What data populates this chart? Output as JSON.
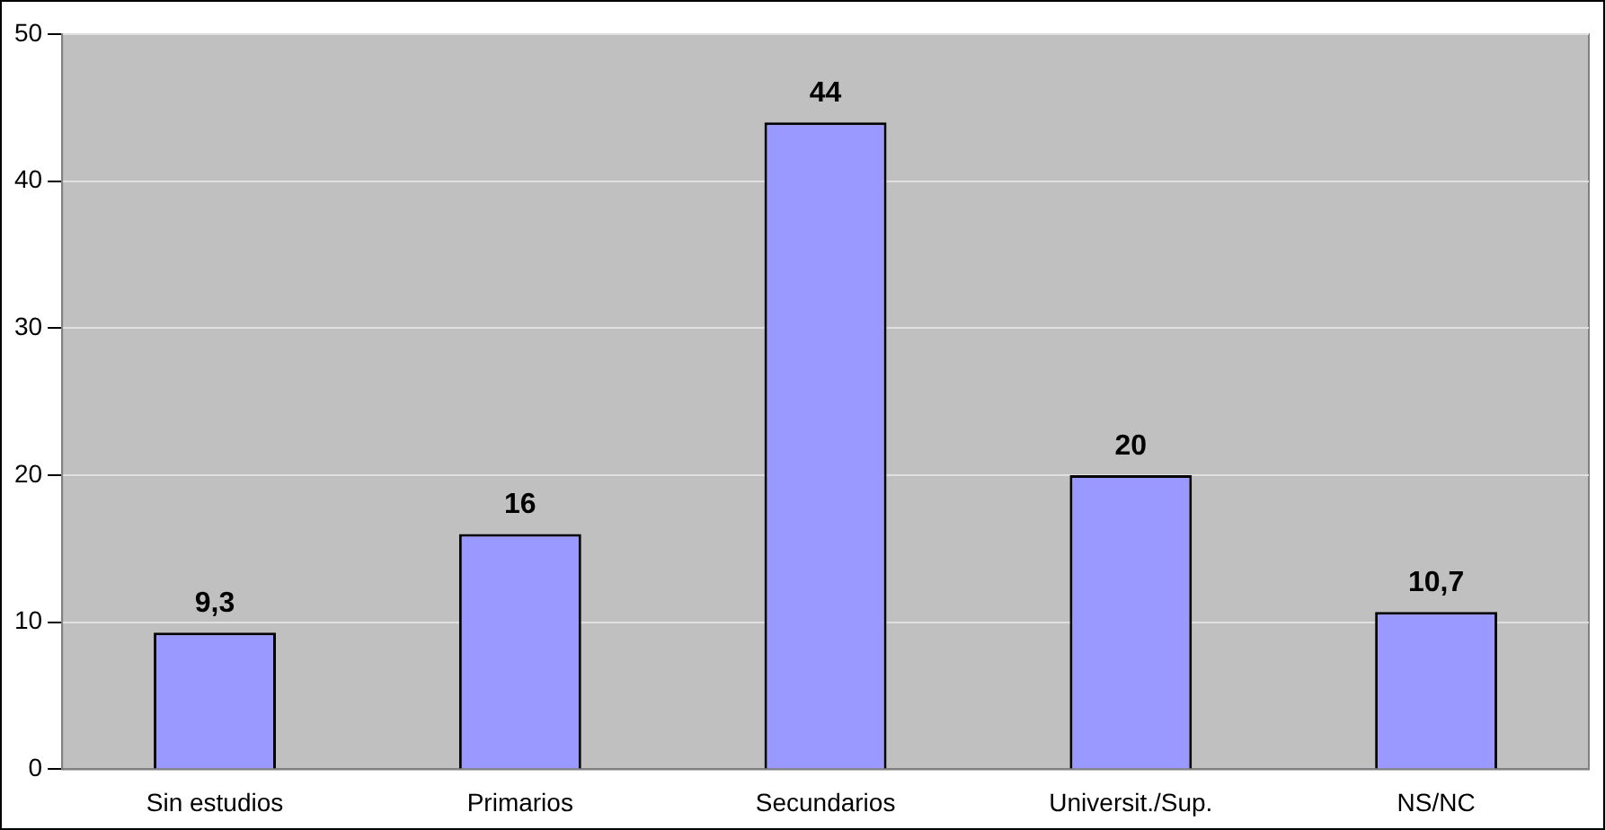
{
  "chart_data": {
    "type": "bar",
    "categories": [
      "Sin estudios",
      "Primarios",
      "Secundarios",
      "Universit./Sup.",
      "NS/NC"
    ],
    "values": [
      9.3,
      16,
      44,
      20,
      10.7
    ],
    "value_labels": [
      "9,3",
      "16",
      "44",
      "20",
      "10,7"
    ],
    "color": "#9999ff",
    "ylim": [
      0,
      50
    ],
    "yticks": [
      0,
      10,
      20,
      30,
      40,
      50
    ],
    "grid": "y",
    "legend": false
  }
}
